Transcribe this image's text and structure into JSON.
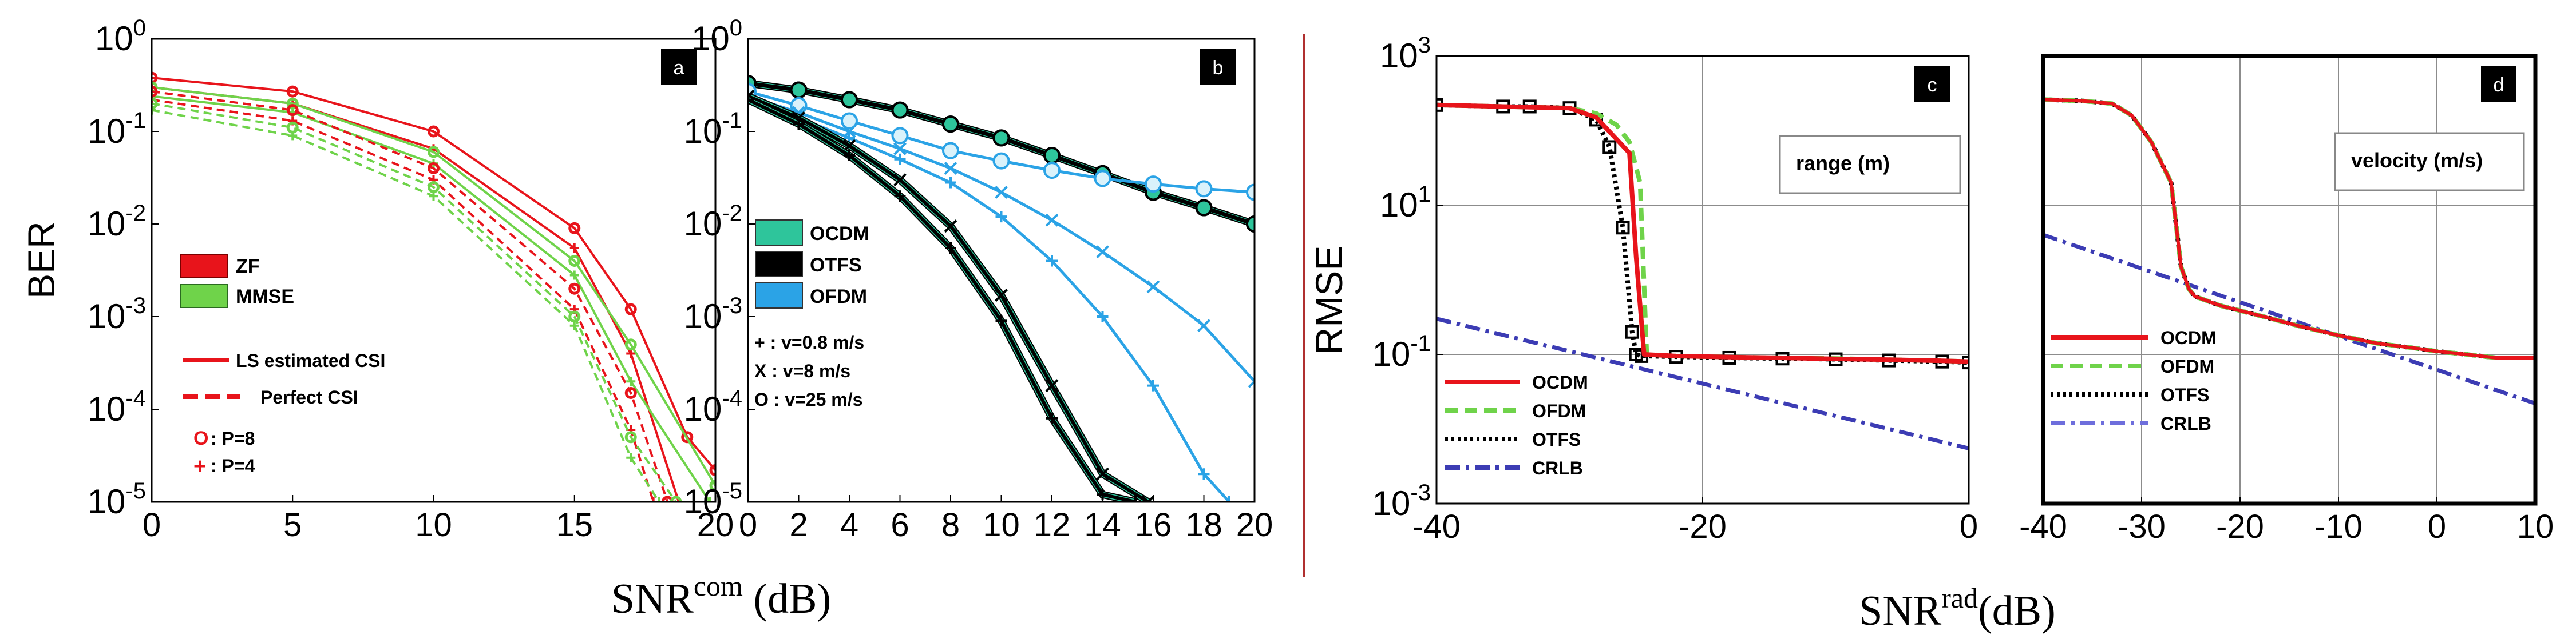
{
  "figure": {
    "divider_color": "#b03030",
    "ylabel_left": "BER",
    "ylabel_right": "RMSE",
    "xlabel_left_base": "SNR",
    "xlabel_left_sup": "com",
    "xlabel_left_unit": " (dB)",
    "xlabel_right_base": "SNR",
    "xlabel_right_sup": "rad",
    "xlabel_right_unit": "(dB)"
  },
  "chart_data": [
    {
      "id": "a",
      "type": "line",
      "panel_label": "a",
      "yscale": "log",
      "xlim": [
        0,
        20
      ],
      "ylim_exp": [
        -5,
        0
      ],
      "xticks": [
        "0",
        "5",
        "10",
        "15",
        "20"
      ],
      "xtick_values": [
        0,
        5,
        10,
        15,
        20
      ],
      "ytick_exps": [
        -5,
        -4,
        -3,
        -2,
        -1,
        0
      ],
      "grid": false,
      "legend": {
        "colors": [
          {
            "label": "ZF",
            "color": "#e8141b"
          },
          {
            "label": "MMSE",
            "color": "#6fd34a"
          }
        ],
        "lines": [
          {
            "label": "LS estimated CSI",
            "style": "solid"
          },
          {
            "label": "Perfect CSI",
            "style": "dashed"
          }
        ],
        "markers": [
          {
            "symbol": "O",
            "label": ":  P=8"
          },
          {
            "symbol": "+",
            "label": ": P=4"
          }
        ]
      },
      "series": [
        {
          "color": "#e8141b",
          "dash": "",
          "marker": "o",
          "x": [
            0,
            5,
            10,
            15,
            17,
            19,
            20
          ],
          "y": [
            0.38,
            0.27,
            0.1,
            0.009,
            0.0012,
            5e-05,
            2.2e-05
          ]
        },
        {
          "color": "#e8141b",
          "dash": "",
          "marker": "+",
          "x": [
            0,
            5,
            10,
            15,
            17,
            18.7
          ],
          "y": [
            0.3,
            0.2,
            0.065,
            0.0055,
            0.0004,
            1e-05
          ]
        },
        {
          "color": "#6fd34a",
          "dash": "",
          "marker": "o",
          "x": [
            0,
            5,
            10,
            15,
            17,
            20
          ],
          "y": [
            0.3,
            0.2,
            0.06,
            0.004,
            0.0005,
            1.5e-05
          ]
        },
        {
          "color": "#6fd34a",
          "dash": "",
          "marker": "+",
          "x": [
            0,
            5,
            10,
            15,
            17,
            19.8
          ],
          "y": [
            0.24,
            0.16,
            0.045,
            0.0028,
            0.0002,
            1e-05
          ]
        },
        {
          "color": "#e8141b",
          "dash": "14 9",
          "marker": "o",
          "x": [
            0,
            5,
            10,
            15,
            17,
            18.3
          ],
          "y": [
            0.27,
            0.17,
            0.04,
            0.002,
            0.00015,
            1e-05
          ]
        },
        {
          "color": "#e8141b",
          "dash": "14 9",
          "marker": "+",
          "x": [
            0,
            5,
            10,
            15,
            17,
            17.8
          ],
          "y": [
            0.22,
            0.13,
            0.03,
            0.0012,
            6e-05,
            1e-05
          ]
        },
        {
          "color": "#6fd34a",
          "dash": "14 9",
          "marker": "o",
          "x": [
            0,
            5,
            10,
            15,
            17,
            18.6
          ],
          "y": [
            0.2,
            0.11,
            0.025,
            0.001,
            5e-05,
            1e-05
          ]
        },
        {
          "color": "#6fd34a",
          "dash": "14 9",
          "marker": "+",
          "x": [
            0,
            5,
            10,
            15,
            17,
            18
          ],
          "y": [
            0.17,
            0.09,
            0.02,
            0.0008,
            3e-05,
            1e-05
          ]
        }
      ]
    },
    {
      "id": "b",
      "type": "line",
      "panel_label": "b",
      "yscale": "log",
      "xlim": [
        0,
        20
      ],
      "ylim_exp": [
        -5,
        0
      ],
      "xticks": [
        "0",
        "2",
        "4",
        "6",
        "8",
        "10",
        "12",
        "14",
        "16",
        "18",
        "20"
      ],
      "xtick_values": [
        0,
        2,
        4,
        6,
        8,
        10,
        12,
        14,
        16,
        18,
        20
      ],
      "ytick_exps": [
        -5,
        -4,
        -3,
        -2,
        -1,
        0
      ],
      "grid": false,
      "legend": {
        "colors": [
          {
            "label": "OCDM",
            "color": "#2ec59b"
          },
          {
            "label": "OTFS",
            "color": "#000000"
          },
          {
            "label": "OFDM",
            "color": "#2ba3e6"
          }
        ],
        "notes": [
          "+  : v=0.8 m/s",
          "X   : v=8 m/s",
          "O  : v=25 m/s"
        ]
      },
      "series": [
        {
          "name": "OCDM v=25",
          "color": "#2ec59b",
          "edge": "#000000",
          "width": 9,
          "marker": "o",
          "x": [
            0,
            2,
            4,
            6,
            8,
            10,
            12,
            14,
            16,
            18,
            20
          ],
          "y": [
            0.33,
            0.28,
            0.22,
            0.17,
            0.12,
            0.085,
            0.055,
            0.035,
            0.022,
            0.015,
            0.01
          ]
        },
        {
          "name": "OTFS v=25",
          "color": "#000000",
          "width": 7,
          "marker": "o",
          "x": [
            0,
            2,
            4,
            6,
            8,
            10,
            12,
            14,
            16,
            18,
            20
          ],
          "y": [
            0.33,
            0.28,
            0.22,
            0.17,
            0.12,
            0.085,
            0.055,
            0.035,
            0.022,
            0.015,
            0.01
          ]
        },
        {
          "name": "OFDM v=25",
          "color": "#2ba3e6",
          "width": 5,
          "marker": "o",
          "x": [
            0,
            2,
            4,
            6,
            8,
            10,
            12,
            14,
            16,
            18,
            20
          ],
          "y": [
            0.27,
            0.19,
            0.13,
            0.09,
            0.062,
            0.048,
            0.038,
            0.031,
            0.027,
            0.024,
            0.022
          ]
        },
        {
          "name": "OFDM v=8",
          "color": "#2ba3e6",
          "width": 5,
          "marker": "x",
          "x": [
            0,
            2,
            4,
            6,
            8,
            10,
            12,
            14,
            16,
            18,
            20
          ],
          "y": [
            0.24,
            0.16,
            0.1,
            0.065,
            0.04,
            0.022,
            0.011,
            0.005,
            0.0021,
            0.0008,
            0.0002
          ]
        },
        {
          "name": "OFDM v=0.8",
          "color": "#2ba3e6",
          "width": 5,
          "marker": "+",
          "x": [
            0,
            2,
            4,
            6,
            8,
            10,
            12,
            14,
            16,
            18,
            19
          ],
          "y": [
            0.22,
            0.14,
            0.085,
            0.05,
            0.028,
            0.012,
            0.004,
            0.001,
            0.00018,
            2e-05,
            1e-05
          ]
        },
        {
          "name": "OCDM v=8",
          "color": "#2ec59b",
          "edge": "#000000",
          "width": 9,
          "marker": "x",
          "x": [
            0,
            2,
            4,
            6,
            8,
            10,
            12,
            14,
            15.8
          ],
          "y": [
            0.24,
            0.14,
            0.07,
            0.03,
            0.0095,
            0.0017,
            0.00018,
            2e-05,
            1e-05
          ]
        },
        {
          "name": "OTFS v=8",
          "color": "#000000",
          "width": 6,
          "marker": "x",
          "x": [
            0,
            2,
            4,
            6,
            8,
            10,
            12,
            14,
            15.8
          ],
          "y": [
            0.24,
            0.14,
            0.07,
            0.03,
            0.0095,
            0.0017,
            0.00018,
            2e-05,
            1e-05
          ]
        },
        {
          "name": "OCDM v=0.8",
          "color": "#2ec59b",
          "edge": "#000000",
          "width": 9,
          "marker": "+",
          "x": [
            0,
            2,
            4,
            6,
            8,
            10,
            12,
            14,
            15.3
          ],
          "y": [
            0.22,
            0.12,
            0.055,
            0.02,
            0.0055,
            0.0009,
            8e-05,
            1.2e-05,
            1e-05
          ]
        },
        {
          "name": "OTFS v=0.8",
          "color": "#000000",
          "width": 6,
          "marker": "+",
          "x": [
            0,
            2,
            4,
            6,
            8,
            10,
            12,
            14,
            15.3
          ],
          "y": [
            0.22,
            0.12,
            0.055,
            0.02,
            0.0055,
            0.0009,
            8e-05,
            1.2e-05,
            1e-05
          ]
        }
      ]
    },
    {
      "id": "c",
      "type": "line",
      "panel_label": "c",
      "yscale": "log",
      "xlim": [
        -40,
        0
      ],
      "ylim_exp": [
        -3,
        3
      ],
      "xticks": [
        "-40",
        "-20",
        "0"
      ],
      "xtick_values": [
        -40,
        -20,
        0
      ],
      "ytick_exps": [
        -3,
        -1,
        1,
        3
      ],
      "grid": true,
      "title_box": "range (m)",
      "legend": {
        "entries": [
          {
            "label": "OCDM",
            "color": "#e8141b",
            "dash": ""
          },
          {
            "label": "OFDM",
            "color": "#6fd34a",
            "dash": "22 12"
          },
          {
            "label": "OTFS",
            "color": "#000000",
            "dash": "5 6"
          },
          {
            "label": "CRLB",
            "color": "#3c3cb4",
            "dash": "26 10 6 10"
          }
        ]
      },
      "series": [
        {
          "name": "CRLB",
          "color": "#3c3cb4",
          "dash": "26 10 6 10",
          "width": 7,
          "x": [
            -40,
            0
          ],
          "y": [
            0.3,
            0.0055
          ]
        },
        {
          "name": "OTFS",
          "color": "#000000",
          "dash": "5 6",
          "width": 8,
          "marker": "s",
          "x": [
            -40,
            -35,
            -33,
            -30,
            -28,
            -27,
            -26,
            -25.3,
            -25,
            -24.6,
            -22,
            -18,
            -14,
            -10,
            -6,
            -2,
            0
          ],
          "y": [
            220,
            210,
            210,
            200,
            140,
            60,
            5,
            0.2,
            0.1,
            0.095,
            0.093,
            0.09,
            0.088,
            0.086,
            0.083,
            0.08,
            0.078
          ]
        },
        {
          "name": "OFDM",
          "color": "#6fd34a",
          "dash": "22 12",
          "width": 8,
          "x": [
            -40,
            -35,
            -30,
            -28,
            -26.5,
            -25.5,
            -24.7,
            -24.2,
            -22,
            -18,
            -14,
            -10,
            -6,
            -2,
            0
          ],
          "y": [
            220,
            210,
            200,
            170,
            120,
            70,
            20,
            0.1,
            0.095,
            0.092,
            0.09,
            0.088,
            0.085,
            0.082,
            0.08
          ]
        },
        {
          "name": "OCDM",
          "color": "#e8141b",
          "dash": "",
          "width": 8,
          "x": [
            -40,
            -35,
            -30,
            -28,
            -25.5,
            -25,
            -24.4,
            -22,
            -18,
            -14,
            -10,
            -6,
            -2,
            0
          ],
          "y": [
            220,
            210,
            200,
            150,
            50,
            2,
            0.1,
            0.095,
            0.092,
            0.09,
            0.087,
            0.085,
            0.082,
            0.08
          ]
        }
      ]
    },
    {
      "id": "d",
      "type": "line",
      "panel_label": "d",
      "yscale": "log",
      "xlim": [
        -40,
        10
      ],
      "ylim_exp": [
        -3,
        3
      ],
      "xticks": [
        "-40",
        "-30",
        "-20",
        "-10",
        "0",
        "10"
      ],
      "xtick_values": [
        -40,
        -30,
        -20,
        -10,
        0,
        10
      ],
      "ytick_exps": [
        -3,
        -1,
        1,
        3
      ],
      "show_ytick_labels": false,
      "grid": true,
      "title_box": "velocity (m/s)",
      "legend": {
        "entries": [
          {
            "label": "OCDM",
            "color": "#e8141b",
            "dash": ""
          },
          {
            "label": "OFDM",
            "color": "#6fd34a",
            "dash": "22 12"
          },
          {
            "label": "OTFS",
            "color": "#000000",
            "dash": "5 6"
          },
          {
            "label": "CRLB",
            "color": "#6e6edc",
            "dash": "26 10 6 10"
          }
        ]
      },
      "series": [
        {
          "name": "CRLB",
          "color": "#3c3cb4",
          "dash": "26 10 6 10",
          "width": 7,
          "x": [
            -40,
            10
          ],
          "y": [
            4,
            0.022
          ]
        },
        {
          "name": "OTFS",
          "color": "#000000",
          "dash": "5 6",
          "width": 8,
          "x": [
            -40,
            -36,
            -33,
            -31,
            -29,
            -27,
            -26,
            -25.2,
            -24.6,
            -22,
            -18,
            -14,
            -10,
            -6,
            -2,
            0,
            3,
            6,
            10
          ],
          "y": [
            260,
            250,
            230,
            160,
            70,
            20,
            1.5,
            0.75,
            0.6,
            0.45,
            0.33,
            0.24,
            0.18,
            0.14,
            0.12,
            0.11,
            0.1,
            0.09,
            0.09
          ]
        },
        {
          "name": "OFDM",
          "color": "#6fd34a",
          "dash": "22 12",
          "width": 8,
          "x": [
            -40,
            -36,
            -33,
            -31,
            -29,
            -27,
            -26,
            -25.2,
            -24.6,
            -22,
            -18,
            -14,
            -10,
            -6,
            -2,
            0,
            3,
            6,
            10
          ],
          "y": [
            260,
            250,
            230,
            160,
            70,
            20,
            1.5,
            0.75,
            0.6,
            0.45,
            0.33,
            0.24,
            0.18,
            0.14,
            0.12,
            0.11,
            0.1,
            0.09,
            0.09
          ]
        },
        {
          "name": "OCDM",
          "color": "#e8141b",
          "dash": "",
          "width": 6,
          "x": [
            -40,
            -36,
            -33,
            -31,
            -29,
            -27,
            -26,
            -25.2,
            -24.6,
            -22,
            -18,
            -14,
            -10,
            -6,
            -2,
            0,
            3,
            6,
            10
          ],
          "y": [
            260,
            250,
            230,
            160,
            70,
            20,
            1.5,
            0.75,
            0.6,
            0.45,
            0.33,
            0.24,
            0.18,
            0.14,
            0.12,
            0.11,
            0.1,
            0.09,
            0.09
          ]
        }
      ]
    }
  ]
}
